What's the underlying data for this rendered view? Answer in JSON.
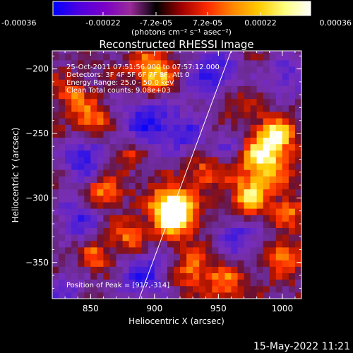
{
  "colorbar": {
    "ticks": [
      {
        "value": -0.00036,
        "label": "-0.00036"
      },
      {
        "value": -0.00022,
        "label": "-0.00022"
      },
      {
        "value": -7.2e-05,
        "label": "-7.2e-05"
      },
      {
        "value": 7.2e-05,
        "label": "7.2e-05"
      },
      {
        "value": 0.00022,
        "label": "0.00022"
      },
      {
        "value": 0.00036,
        "label": "0.00036"
      }
    ],
    "range": [
      -0.00036,
      0.00036
    ],
    "unit_label": "(photons cm⁻² s⁻¹ asec⁻²)",
    "colors": [
      "#0000ff",
      "#4d00e0",
      "#7a00c8",
      "#9a2a9a",
      "#000000",
      "#a00000",
      "#ff2a00",
      "#ff8800",
      "#ffcc00",
      "#ffff80",
      "#ffffff"
    ]
  },
  "chart_data": {
    "type": "heatmap",
    "title": "Reconstructed RHESSI Image",
    "xlabel": "Heliocentric X (arcsec)",
    "ylabel": "Heliocentric Y (arcsec)",
    "xlim": [
      820,
      1015
    ],
    "ylim": [
      -378,
      -186
    ],
    "xticks": [
      850,
      900,
      950,
      1000
    ],
    "yticks": [
      -200,
      -250,
      -300,
      -350
    ],
    "annotations": [
      "25-Oct-2011 07:51:56.000 to 07:57:12.000",
      "Detectors: 3F 4F 5F 6F 7F 8F, Att 0",
      "Energy Range: 25.0 - 50.0 keV",
      "Clean    Total counts: 9.08e+03"
    ],
    "peak_label": "Position of Peak = [917,-314]",
    "peak": {
      "x": 917,
      "y": -314
    },
    "limb_line": {
      "x": [
        888,
        960
      ],
      "y": [
        -378,
        -186
      ]
    },
    "blobs": [
      {
        "x": 917,
        "y": -314,
        "v": 1.0,
        "r": 11
      },
      {
        "x": 912,
        "y": -305,
        "v": 0.8,
        "r": 10
      },
      {
        "x": 985,
        "y": -270,
        "v": 0.95,
        "r": 14
      },
      {
        "x": 995,
        "y": -250,
        "v": 0.7,
        "r": 10
      },
      {
        "x": 975,
        "y": -300,
        "v": 0.75,
        "r": 10
      },
      {
        "x": 900,
        "y": -204,
        "v": 0.9,
        "r": 12
      },
      {
        "x": 850,
        "y": -240,
        "v": 0.7,
        "r": 9
      },
      {
        "x": 835,
        "y": -220,
        "v": 0.55,
        "r": 8
      },
      {
        "x": 860,
        "y": -295,
        "v": 0.65,
        "r": 9
      },
      {
        "x": 880,
        "y": -330,
        "v": 0.55,
        "r": 9
      },
      {
        "x": 855,
        "y": -345,
        "v": 0.5,
        "r": 8
      },
      {
        "x": 930,
        "y": -355,
        "v": 0.55,
        "r": 10
      },
      {
        "x": 955,
        "y": -365,
        "v": 0.55,
        "r": 9
      },
      {
        "x": 1000,
        "y": -345,
        "v": 0.6,
        "r": 9
      },
      {
        "x": 1005,
        "y": -310,
        "v": 0.5,
        "r": 8
      },
      {
        "x": 960,
        "y": -225,
        "v": 0.45,
        "r": 8
      },
      {
        "x": 880,
        "y": -265,
        "v": 0.45,
        "r": 8
      },
      {
        "x": 940,
        "y": -280,
        "v": 0.5,
        "r": 9
      },
      {
        "x": 895,
        "y": -240,
        "v": -0.8,
        "r": 16
      },
      {
        "x": 845,
        "y": -268,
        "v": -0.75,
        "r": 12
      },
      {
        "x": 945,
        "y": -205,
        "v": -0.7,
        "r": 16
      },
      {
        "x": 925,
        "y": -250,
        "v": -0.55,
        "r": 10
      },
      {
        "x": 890,
        "y": -360,
        "v": -0.7,
        "r": 14
      },
      {
        "x": 840,
        "y": -315,
        "v": -0.6,
        "r": 12
      },
      {
        "x": 965,
        "y": -330,
        "v": -0.6,
        "r": 12
      },
      {
        "x": 1005,
        "y": -205,
        "v": -0.55,
        "r": 12
      },
      {
        "x": 960,
        "y": -260,
        "v": -0.5,
        "r": 10
      },
      {
        "x": 830,
        "y": -370,
        "v": -0.5,
        "r": 10
      }
    ]
  },
  "timestamp": "15-May-2022 11:21"
}
